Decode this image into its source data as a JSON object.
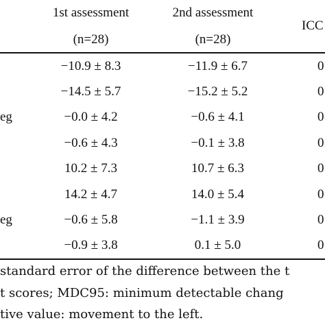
{
  "table": {
    "headers": {
      "col1_line1": "1st assessment",
      "col1_line2": "(n=28)",
      "col2_line1": "2nd assessment",
      "col2_line2": "(n=28)",
      "col3_line1": "ICC"
    },
    "rows": [
      {
        "label": "",
        "first": "−10.9 ± 8.3",
        "second": "−11.9 ± 6.7",
        "icc": "0"
      },
      {
        "label": "",
        "first": "−14.5 ± 5.7",
        "second": "−15.2 ± 5.2",
        "icc": "0"
      },
      {
        "label": "eg",
        "first": "−0.0 ± 4.2",
        "second": "−0.6 ± 4.1",
        "icc": "0"
      },
      {
        "label": "",
        "first": "−0.6 ± 4.3",
        "second": "−0.1 ± 3.8",
        "icc": "0"
      },
      {
        "label": "",
        "first": "10.2 ± 7.3",
        "second": "10.7 ± 6.3",
        "icc": "0"
      },
      {
        "label": "",
        "first": "14.2 ± 4.7",
        "second": "14.0 ± 5.4",
        "icc": "0"
      },
      {
        "label": "eg",
        "first": "−0.6 ± 5.8",
        "second": "−1.1 ± 3.9",
        "icc": "0"
      },
      {
        "label": "",
        "first": "−0.9 ± 3.8",
        "second": "0.1 ± 5.0",
        "icc": "0"
      }
    ]
  },
  "footnotes": [
    " standard error of the difference between the t",
    "t scores; MDC95: minimum detectable chang",
    "tive value: movement to the left."
  ]
}
